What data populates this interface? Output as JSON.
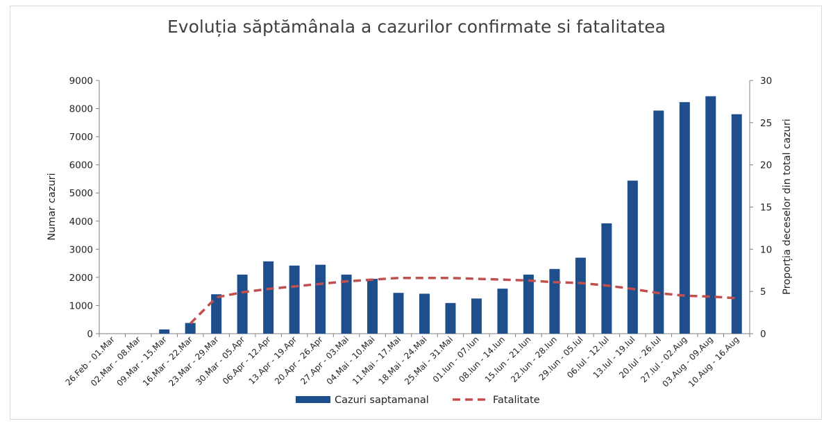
{
  "chart_data": {
    "type": "bar",
    "title": "Evoluția săptămânala a cazurilor confirmate si fatalitatea",
    "ylabel": "Numar cazuri",
    "y2label": "Proporția deceselor din total cazuri",
    "ylim": [
      0,
      9000
    ],
    "y2lim": [
      0,
      30
    ],
    "yticks": [
      "0",
      "1000",
      "2000",
      "3000",
      "4000",
      "5000",
      "6000",
      "7000",
      "8000",
      "9000"
    ],
    "y2ticks": [
      "0",
      "5",
      "10",
      "15",
      "20",
      "25",
      "30"
    ],
    "grid": false,
    "legend_position": "bottom",
    "categories": [
      "26.Feb - 01.Mar",
      "02.Mar - 08.Mar",
      "09.Mar - 15.Mar",
      "16.Mar - 22.Mar",
      "23.Mar - 29.Mar",
      "30.Mar - 05.Apr",
      "06.Apr - 12.Apr",
      "13.Apr - 19.Apr",
      "20.Apr - 26.Apr",
      "27.Apr - 03.Mai",
      "04.Mai - 10.Mai",
      "11.Mai - 17.Mai",
      "18.Mai - 24.Mai",
      "25.Mai - 31.Mai",
      "01.Iun - 07.Iun",
      "08.Iun - 14.Iun",
      "15.Iun - 21.Iun",
      "22.Iun - 28.Iun",
      "29.Iun - 05.Iul",
      "06.Iul - 12.Iul",
      "13.Iul - 19.Iul",
      "20.Iul - 26.Iul",
      "27.Iul - 02.Aug",
      "03.Aug - 09.Aug",
      "10.Aug - 16.Aug"
    ],
    "series": [
      {
        "name": "Cazuri saptamanal",
        "type": "bar",
        "axis": "left",
        "color": "#1f4e8c",
        "values": [
          0,
          0,
          150,
          380,
          1400,
          2100,
          2570,
          2420,
          2450,
          2100,
          1950,
          1450,
          1420,
          1090,
          1250,
          1600,
          2100,
          2300,
          2700,
          3920,
          5440,
          7930,
          8230,
          8440,
          7800
        ]
      },
      {
        "name": "Fatalitate",
        "type": "line",
        "axis": "right",
        "color": "#c0504d",
        "dash": true,
        "values": [
          null,
          null,
          null,
          1.2,
          4.3,
          4.9,
          5.3,
          5.6,
          5.9,
          6.2,
          6.4,
          6.6,
          6.6,
          6.6,
          6.5,
          6.4,
          6.3,
          6.1,
          6.0,
          5.7,
          5.3,
          4.8,
          4.5,
          4.4,
          4.2
        ]
      }
    ]
  }
}
